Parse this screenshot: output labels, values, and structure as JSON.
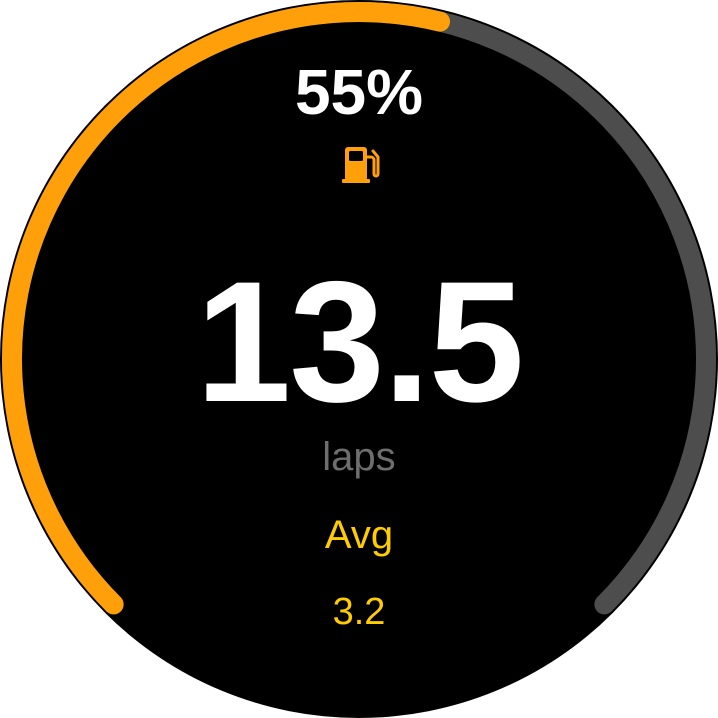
{
  "fuel": {
    "percent_label": "55%",
    "level": 0.55,
    "icon": "fuel-pump-icon"
  },
  "laps": {
    "value": "13.5",
    "unit": "laps"
  },
  "average": {
    "label": "Avg",
    "value": "3.2"
  },
  "colors": {
    "accent": "#ff9f0a",
    "track": "#4d4d4d",
    "primary_text": "#ffffff",
    "secondary_text": "#6e6e6e",
    "highlight_text": "#ffcc00",
    "background": "#000000"
  }
}
